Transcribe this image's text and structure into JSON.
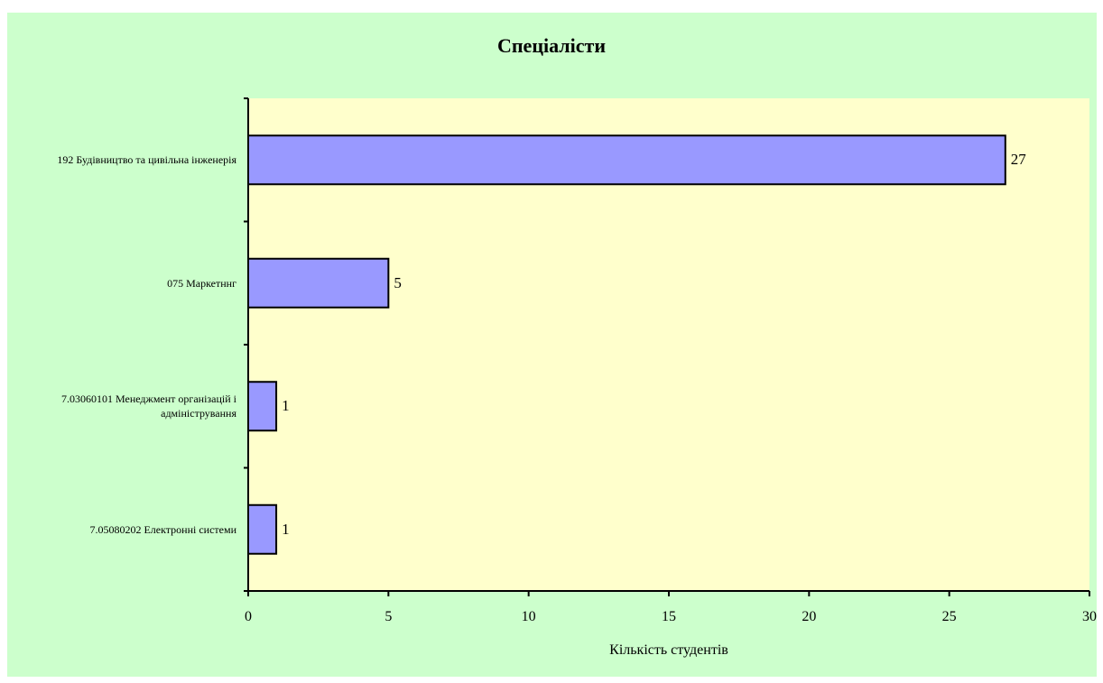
{
  "chart_data": {
    "type": "bar",
    "orientation": "horizontal",
    "title": "Спеціалісти",
    "xlabel": "Кількість студентів",
    "ylabel": "",
    "categories": [
      "192 Будівництво та цивільна інженерія",
      "075 Маркетннг",
      "7.03060101 Менеджмент організацій і адміністрування",
      "7.05080202 Електронні системи"
    ],
    "values": [
      27,
      5,
      1,
      1
    ],
    "xlim": [
      0,
      30
    ],
    "xticks": [
      "0",
      "5",
      "10",
      "15",
      "20",
      "25",
      "30"
    ],
    "data_labels": [
      "27",
      "5",
      "1",
      "1"
    ],
    "grid": false,
    "legend": "none",
    "colors": {
      "bar": "#9999ff",
      "bar_border": "#000000",
      "plot_background": "#ffffcc",
      "chart_background": "#ccffcc"
    }
  }
}
